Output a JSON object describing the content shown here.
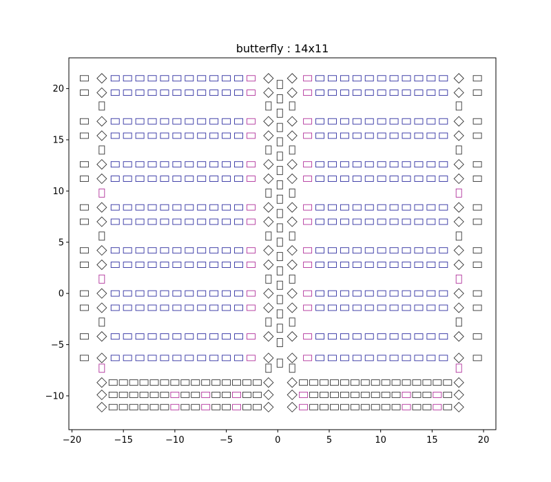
{
  "chart_data": {
    "type": "scatter",
    "title": "butterfly : 14x11",
    "xlabel": "",
    "ylabel": "",
    "xlim": [
      -20.3,
      21.2
    ],
    "ylim": [
      -13.3,
      23.0
    ],
    "xticks": [
      -20,
      -15,
      -10,
      -5,
      0,
      5,
      10,
      15,
      20
    ],
    "yticks": [
      -10,
      -5,
      0,
      5,
      10,
      15,
      20
    ],
    "grid": false,
    "colors": {
      "default": "#333333",
      "blue": "#2e2ea0",
      "magenta": "#b0309a"
    },
    "h_row_y": [
      21,
      19.6,
      16.8,
      15.4,
      12.6,
      11.2,
      8.4,
      7.0,
      4.2,
      2.8,
      0,
      -1.4,
      -4.2,
      -6.3
    ],
    "h_row_colors": [
      "blue",
      "blue",
      "blue",
      "blue",
      "blue",
      "blue",
      "blue",
      "blue",
      "blue",
      "blue",
      "blue",
      "blue",
      "blue",
      "blue"
    ],
    "left_block_x": [
      -15.8,
      -14.6,
      -13.4,
      -12.2,
      -11.0,
      -9.8,
      -8.6,
      -7.4,
      -6.2,
      -5.0,
      -3.8,
      -2.6
    ],
    "right_block_x": [
      2.9,
      4.1,
      5.3,
      6.5,
      7.7,
      8.9,
      10.1,
      11.3,
      12.5,
      13.7,
      14.9,
      16.1
    ],
    "magenta_edge_x": [
      -2.6,
      2.9
    ],
    "outer_left_x": -18.8,
    "outer_right_x": 19.4,
    "diamond_left_x": -17.1,
    "diamond_right_x": 17.6,
    "center_diamond_x": [
      -0.9,
      1.4
    ],
    "vertical_column_x": 0.2,
    "vertical_column_y": [
      20.4,
      19.0,
      17.6,
      16.2,
      14.8,
      13.4,
      12.0,
      10.6,
      9.2,
      7.8,
      6.4,
      5.0,
      3.6,
      2.2,
      0.8,
      -0.6,
      -2.0,
      -3.4,
      -4.8,
      -6.8
    ],
    "side_vertical_y": [
      18.3,
      14.0,
      9.8,
      5.6,
      1.4,
      -2.8,
      -7.3
    ],
    "side_vertical_magenta_y": [
      9.8,
      1.4,
      -7.3
    ],
    "bottom_rows_y": [
      -8.7,
      -9.9,
      -11.1
    ],
    "bottom_row_x": [
      -16.0,
      -15.0,
      -14.0,
      -13.0,
      -12.0,
      -11.0,
      -10.0,
      -9.0,
      -8.0,
      -7.0,
      -6.0,
      -5.0,
      -4.0,
      -3.0,
      -2.0
    ]
  }
}
